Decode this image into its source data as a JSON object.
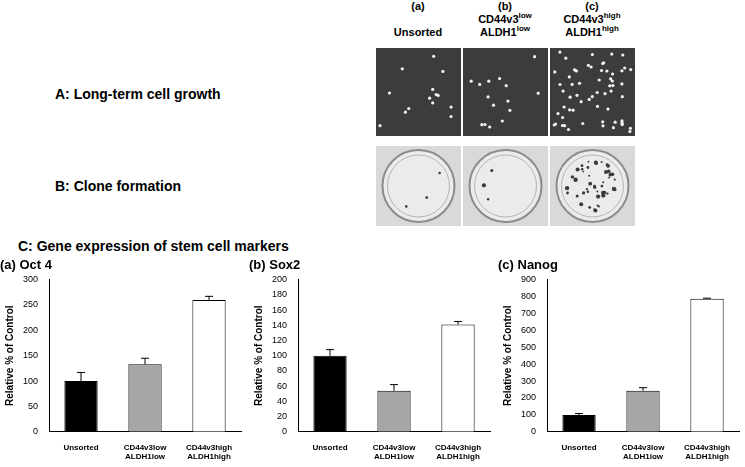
{
  "figure": {
    "column_headers": [
      {
        "letter": "(a)",
        "lines": [
          {
            "text": "Unsorted",
            "sup": null
          }
        ]
      },
      {
        "letter": "(b)",
        "lines": [
          {
            "text": "CD44v3",
            "sup": "low"
          },
          {
            "text": "ALDH1",
            "sup": "low"
          }
        ]
      },
      {
        "letter": "(c)",
        "lines": [
          {
            "text": "CD44v3",
            "sup": "high"
          },
          {
            "text": "ALDH1",
            "sup": "high"
          }
        ]
      }
    ],
    "row_labels": [
      "A: Long-term cell growth",
      "B: Clone formation",
      "C: Gene expression of stem cell markers"
    ]
  },
  "chart_data": [
    {
      "type": "bar",
      "title": "(a) Oct 4",
      "y_label": "Relative % of Control",
      "categories": [
        "Unsorted",
        "CD44v3low ALDH1low",
        "CD44v3high ALDH1high"
      ],
      "values": [
        100,
        133,
        260
      ],
      "errors": [
        17,
        12,
        7
      ],
      "colors": [
        "#000000",
        "#a6a6a6",
        "#ffffff"
      ],
      "ylim": [
        0,
        300
      ],
      "yticks": [
        0,
        50,
        100,
        150,
        200,
        250,
        300
      ],
      "grid": false
    },
    {
      "type": "bar",
      "title": "(b) Sox2",
      "y_label": "Relative % of Control",
      "categories": [
        "Unsorted",
        "CD44v3low ALDH1low",
        "CD44v3high ALDH1high"
      ],
      "values": [
        100,
        54,
        141
      ],
      "errors": [
        8,
        8,
        4
      ],
      "colors": [
        "#000000",
        "#a6a6a6",
        "#ffffff"
      ],
      "ylim": [
        0,
        200
      ],
      "yticks": [
        0,
        20,
        40,
        60,
        80,
        100,
        120,
        140,
        160,
        180,
        200
      ],
      "grid": false
    },
    {
      "type": "bar",
      "title": "(c) Nanog",
      "y_label": "Relative % of Control",
      "categories": [
        "Unsorted",
        "CD44v3low ALDH1low",
        "CD44v3high ALDH1high"
      ],
      "values": [
        100,
        243,
        787
      ],
      "errors": [
        8,
        18,
        3
      ],
      "colors": [
        "#000000",
        "#a6a6a6",
        "#ffffff"
      ],
      "ylim": [
        0,
        900
      ],
      "yticks": [
        0,
        100,
        200,
        300,
        400,
        500,
        600,
        700,
        800,
        900
      ],
      "grid": false
    }
  ]
}
